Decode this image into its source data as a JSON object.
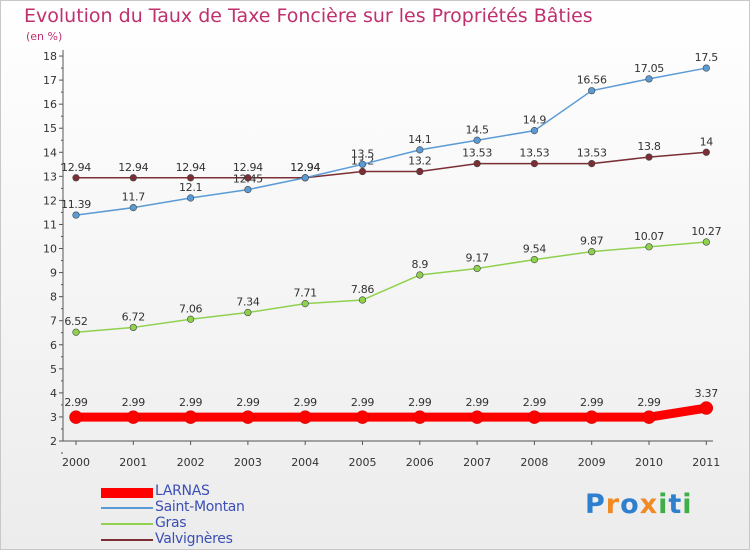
{
  "title": "Evolution du Taux de Taxe Foncière sur les Propriétés Bâties",
  "unit_label": "(en %)",
  "logo": {
    "text": "Proxiti",
    "letters": [
      "P",
      "r",
      "o",
      "x",
      "i",
      "t",
      "i"
    ],
    "colors": [
      "#2f7fcf",
      "#f08a24",
      "#2f7fcf",
      "#f08a24",
      "#3fae49",
      "#2f7fcf",
      "#3fae49"
    ]
  },
  "colors": {
    "title": "#c0306e",
    "axis": "#555555",
    "legend_text": "#3b4fb5"
  },
  "chart_data": {
    "type": "line",
    "categories": [
      "2000",
      "2001",
      "2002",
      "2003",
      "2004",
      "2005",
      "2006",
      "2007",
      "2008",
      "2009",
      "2010",
      "2011"
    ],
    "ylim": [
      2,
      18
    ],
    "yticks": [
      "2",
      "3",
      "4",
      "5",
      "6",
      "7",
      "8",
      "9",
      "10",
      "11",
      "12",
      "13",
      "14",
      "15",
      "16",
      "17",
      "18"
    ],
    "grid": false,
    "legend_position": "bottom-left",
    "series": [
      {
        "name": "LARNAS",
        "color": "#ff0000",
        "values": [
          2.99,
          2.99,
          2.99,
          2.99,
          2.99,
          2.99,
          2.99,
          2.99,
          2.99,
          2.99,
          2.99,
          3.37
        ],
        "labels": [
          "2.99",
          "2.99",
          "2.99",
          "2.99",
          "2.99",
          "2.99",
          "2.99",
          "2.99",
          "2.99",
          "2.99",
          "2.99",
          "3.37"
        ]
      },
      {
        "name": "Saint-Montan",
        "color": "#5b9bd5",
        "values": [
          11.39,
          11.7,
          12.1,
          12.45,
          12.94,
          13.5,
          14.1,
          14.5,
          14.9,
          16.56,
          17.05,
          17.5
        ],
        "labels": [
          "11.39",
          "11.7",
          "12.1",
          "12.45",
          "12.94",
          "13.5",
          "14.1",
          "14.5",
          "14.9",
          "16.56",
          "17.05",
          "17.5"
        ]
      },
      {
        "name": "Gras",
        "color": "#8fd14f",
        "values": [
          6.52,
          6.72,
          7.06,
          7.34,
          7.71,
          7.86,
          8.9,
          9.17,
          9.54,
          9.87,
          10.07,
          10.27
        ],
        "labels": [
          "6.52",
          "6.72",
          "7.06",
          "7.34",
          "7.71",
          "7.86",
          "8.9",
          "9.17",
          "9.54",
          "9.87",
          "10.07",
          "10.27"
        ]
      },
      {
        "name": "Valvignères",
        "color": "#7b2f35",
        "values": [
          12.94,
          12.94,
          12.94,
          12.94,
          12.94,
          13.2,
          13.2,
          13.53,
          13.53,
          13.53,
          13.8,
          14
        ],
        "labels": [
          "12.94",
          "12.94",
          "12.94",
          "12.94",
          "12.94",
          "13.2",
          "13.2",
          "13.53",
          "13.53",
          "13.53",
          "13.8",
          "14"
        ]
      }
    ]
  }
}
